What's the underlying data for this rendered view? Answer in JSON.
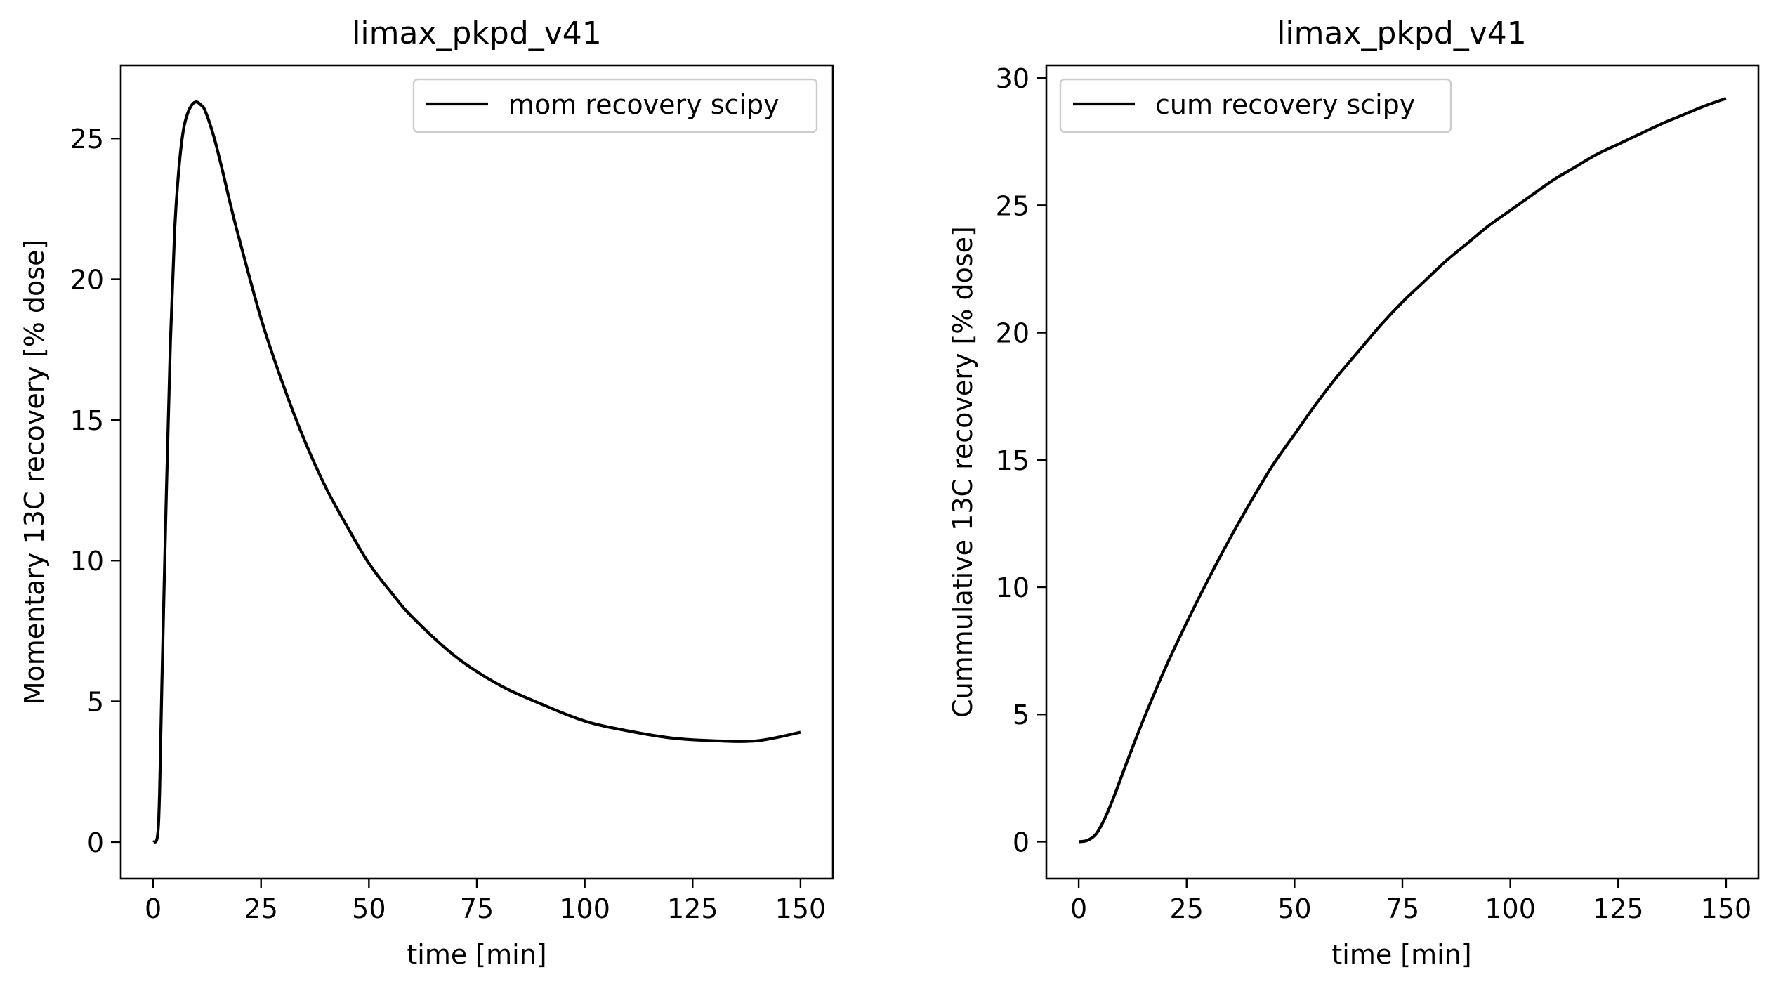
{
  "chart_data": [
    {
      "type": "line",
      "title": "limax_pkpd_v41",
      "xlabel": "time [min]",
      "ylabel": "Momentary 13C recovery [% dose]",
      "xlim": [
        -7.5,
        157.5
      ],
      "ylim": [
        -1.3,
        27.6
      ],
      "xticks": [
        0,
        25,
        50,
        75,
        100,
        125,
        150
      ],
      "yticks": [
        0,
        5,
        10,
        15,
        20,
        25
      ],
      "grid": false,
      "legend_position": "upper right",
      "series": [
        {
          "name": "mom recovery scipy",
          "color": "#000000",
          "x": [
            0,
            1,
            1.5,
            2,
            3,
            4,
            5,
            6,
            7,
            8,
            9,
            10,
            11,
            12,
            14,
            16,
            18,
            20,
            25,
            30,
            35,
            40,
            45,
            50,
            55,
            60,
            70,
            80,
            90,
            100,
            110,
            120,
            130,
            140,
            150
          ],
          "y": [
            0,
            0.2,
            1.8,
            5.5,
            12.0,
            17.8,
            21.8,
            24.0,
            25.3,
            25.9,
            26.2,
            26.3,
            26.2,
            26.0,
            25.1,
            23.9,
            22.6,
            21.4,
            18.6,
            16.3,
            14.3,
            12.6,
            11.2,
            9.9,
            8.9,
            8.0,
            6.6,
            5.6,
            4.9,
            4.3,
            3.95,
            3.7,
            3.6,
            3.6,
            3.9
          ]
        }
      ]
    },
    {
      "type": "line",
      "title": "limax_pkpd_v41",
      "xlabel": "time [min]",
      "ylabel": "Cummulative 13C recovery [% dose]",
      "xlim": [
        -7.5,
        157.5
      ],
      "ylim": [
        -1.45,
        30.5
      ],
      "xticks": [
        0,
        25,
        50,
        75,
        100,
        125,
        150
      ],
      "yticks": [
        0,
        5,
        10,
        15,
        20,
        25,
        30
      ],
      "grid": false,
      "legend_position": "upper left",
      "series": [
        {
          "name": "cum recovery scipy",
          "color": "#000000",
          "x": [
            0,
            2,
            4,
            6,
            8,
            10,
            12,
            15,
            20,
            25,
            30,
            35,
            40,
            45,
            50,
            55,
            60,
            65,
            70,
            75,
            80,
            85,
            90,
            95,
            100,
            105,
            110,
            115,
            120,
            125,
            130,
            135,
            140,
            145,
            150
          ],
          "y": [
            0,
            0.05,
            0.3,
            0.9,
            1.7,
            2.6,
            3.5,
            4.8,
            6.8,
            8.6,
            10.3,
            11.9,
            13.4,
            14.8,
            16.0,
            17.2,
            18.3,
            19.3,
            20.3,
            21.2,
            22.0,
            22.8,
            23.5,
            24.2,
            24.8,
            25.4,
            26.0,
            26.5,
            27.0,
            27.4,
            27.8,
            28.2,
            28.55,
            28.9,
            29.2
          ]
        }
      ]
    }
  ]
}
